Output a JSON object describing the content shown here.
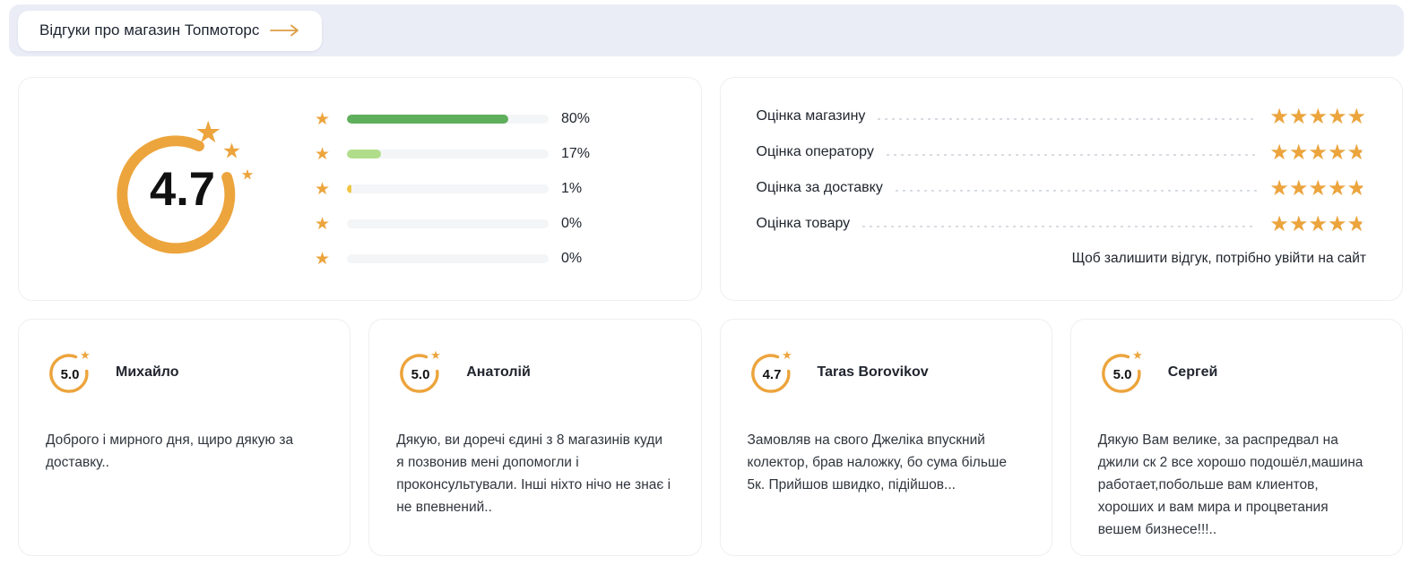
{
  "header": {
    "title": "Відгуки про магазин Топмоторс",
    "arrow_icon": "long-right-arrow"
  },
  "summary": {
    "average_rating": "4.7",
    "bars": [
      {
        "stars": 5,
        "label": "80%",
        "percent": 80,
        "color": "#5fae5b"
      },
      {
        "stars": 4,
        "label": "17%",
        "percent": 17,
        "color": "#b1dd8b"
      },
      {
        "stars": 3,
        "label": "1%",
        "percent": 1,
        "color": "#f1c644"
      },
      {
        "stars": 2,
        "label": "0%",
        "percent": 0,
        "color": "transparent"
      },
      {
        "stars": 1,
        "label": "0%",
        "percent": 0,
        "color": "transparent"
      }
    ],
    "star_glyph": "★"
  },
  "categories": {
    "star_glyphs": "★★★★★",
    "rows": [
      {
        "label": "Оцінка магазину",
        "fill_percent": 98
      },
      {
        "label": "Оцінка оператору",
        "fill_percent": 95
      },
      {
        "label": "Оцінка за доставку",
        "fill_percent": 96
      },
      {
        "label": "Оцінка товару",
        "fill_percent": 95
      }
    ],
    "login_note": "Щоб залишити відгук, потрібно увійти на сайт"
  },
  "reviews": [
    {
      "rating": "5.0",
      "name": "Михайло",
      "text": "Доброго і мирного дня, щиро дякую за доставку.."
    },
    {
      "rating": "5.0",
      "name": "Анатолій",
      "text": "Дякую, ви доречі єдині з 8 магазинів куди я позвонив мені допомогли і проконсультували. Інші ніхто нічо не знає і не впевнений.."
    },
    {
      "rating": "4.7",
      "name": "Taras Borovikov",
      "text": "Замовляв на свого Джеліка впускний колектор, брав наложку, бо сума більше 5к. Прийшов швидко, підійшов..."
    },
    {
      "rating": "5.0",
      "name": "Сергей",
      "text": "Дякую Вам велике, за распредвал на джили ск 2 все хорошо подошёл,машина работает,побольше вам клиентов, хороших и вам мира и процветания вешем бизнесе!!!.."
    }
  ],
  "colors": {
    "accent_orange": "#eca43c",
    "green_full": "#5fae5b",
    "green_light": "#b1dd8b",
    "yellow": "#f1c644",
    "strip_bg": "#eaedf6",
    "empty_star": "#ecedf0",
    "bar_track": "#f3f5f7"
  }
}
